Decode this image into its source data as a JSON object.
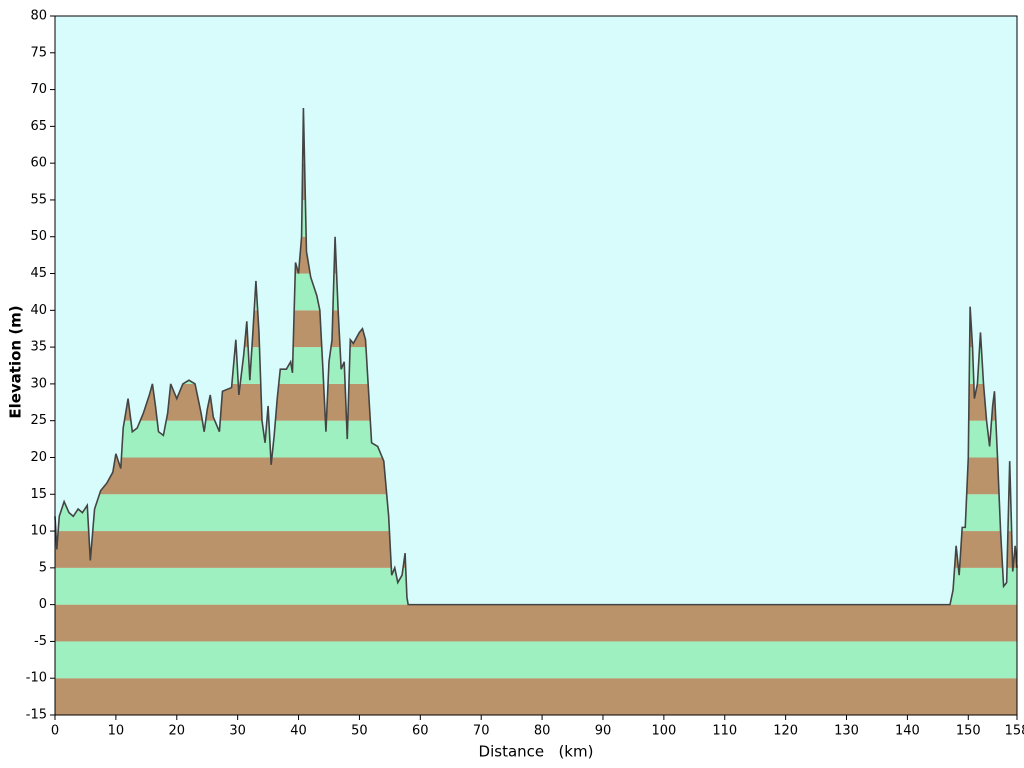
{
  "chart_data": {
    "type": "area",
    "x_label": "Distance   (km)",
    "y_label": "Elevation (m)",
    "xlim": [
      0,
      158
    ],
    "ylim": [
      -15,
      80
    ],
    "xticks": [
      0,
      10,
      20,
      30,
      40,
      50,
      60,
      70,
      80,
      90,
      100,
      110,
      120,
      130,
      140,
      150,
      158
    ],
    "yticks": [
      -15,
      -10,
      -5,
      0,
      5,
      10,
      15,
      20,
      25,
      30,
      35,
      40,
      45,
      50,
      55,
      60,
      65,
      70,
      75,
      80
    ],
    "background": "#d8fcfc",
    "band_colors": [
      "#9ff0c0",
      "#bb936b"
    ],
    "line_color": "#444444",
    "x": [
      0,
      0.3,
      0.7,
      1.5,
      2.3,
      3,
      3.8,
      4.5,
      5.3,
      5.8,
      6.5,
      7.5,
      8.5,
      9.5,
      10,
      10.8,
      11.2,
      12,
      12.7,
      13.5,
      14.5,
      15.5,
      16,
      16.5,
      17,
      17.8,
      18.5,
      19,
      19.5,
      20,
      21,
      22,
      23,
      24,
      24.5,
      25,
      25.5,
      26,
      27,
      27.5,
      29,
      29.7,
      30.2,
      31,
      31.5,
      32,
      32.5,
      33,
      33.5,
      34,
      34.5,
      35,
      35.5,
      36,
      36.5,
      37,
      38,
      38.7,
      39,
      39.5,
      40,
      40.5,
      40.8,
      41.3,
      42,
      43,
      43.5,
      44,
      44.5,
      45,
      45.5,
      46,
      46.5,
      47,
      47.5,
      48,
      48.5,
      49,
      50,
      50.5,
      51,
      51.5,
      52,
      53,
      54,
      54.8,
      55.3,
      55.8,
      56.3,
      57,
      57.5,
      57.8,
      58,
      147,
      147.5,
      148,
      148.5,
      149,
      149.5,
      150,
      150.3,
      150.7,
      151,
      151.5,
      152,
      152.5,
      153,
      153.5,
      154,
      154.3,
      154.8,
      155.3,
      155.8,
      156.3,
      156.8,
      157.3,
      157.7,
      158
    ],
    "values": [
      12,
      7.5,
      12,
      14,
      12.5,
      12,
      13,
      12.5,
      13.5,
      6,
      13,
      15.5,
      16.5,
      18,
      20.5,
      18.5,
      24,
      28,
      23.5,
      24,
      26,
      28.5,
      30,
      27,
      23.5,
      23,
      26,
      30,
      29,
      28,
      30,
      30.5,
      30,
      26,
      23.5,
      26.5,
      28.5,
      25.5,
      23.5,
      29,
      29.5,
      36,
      28.5,
      34,
      38.5,
      30.5,
      37,
      44,
      37,
      25,
      22,
      27,
      19,
      23,
      28,
      32,
      32,
      33,
      31.5,
      46.5,
      45,
      50,
      67.5,
      48,
      44.5,
      42,
      40,
      32,
      23.5,
      33,
      36,
      50,
      40,
      32,
      33,
      22.5,
      36,
      35.5,
      37,
      37.5,
      36,
      29,
      22,
      21.5,
      19.5,
      12,
      4,
      5,
      3,
      4,
      7,
      1,
      0,
      0,
      2,
      8,
      4,
      10.5,
      10.5,
      20,
      40.5,
      35,
      28,
      30,
      37,
      30,
      25,
      21.5,
      27,
      29,
      20,
      10,
      2.5,
      3,
      19.5,
      4.5,
      8,
      5
    ]
  }
}
